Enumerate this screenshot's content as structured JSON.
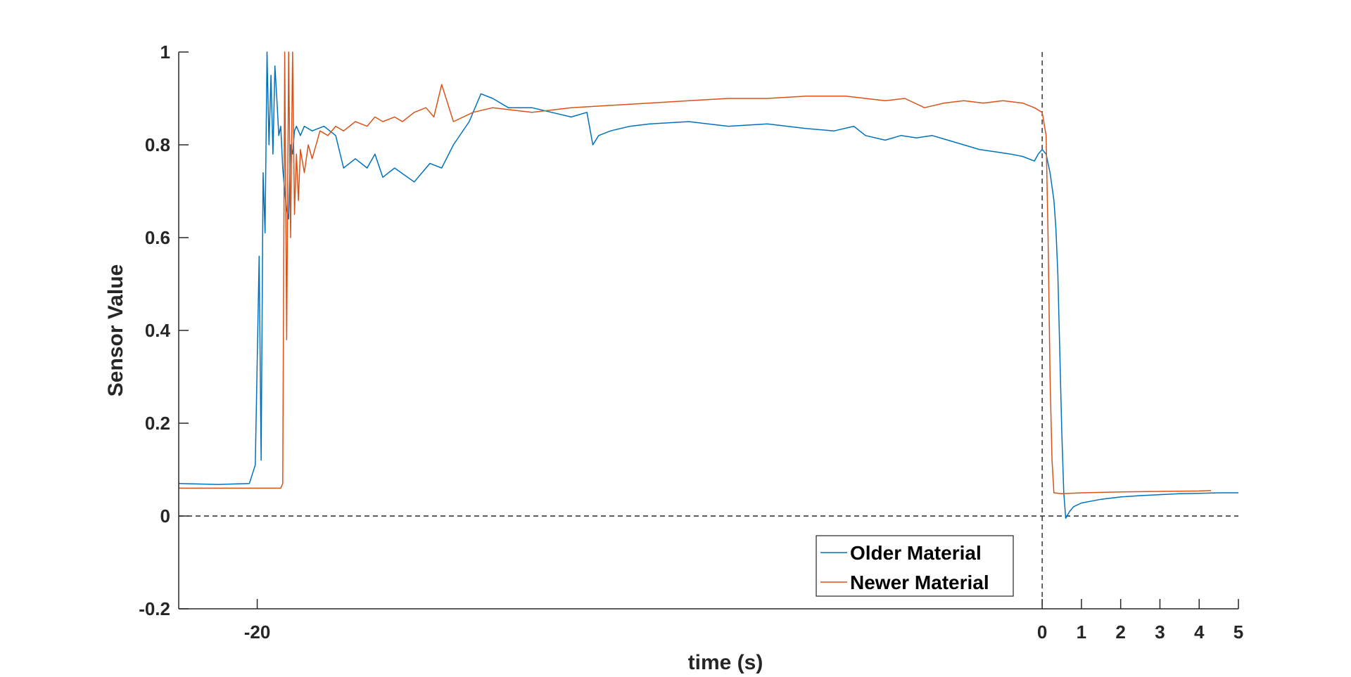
{
  "chart_data": {
    "type": "line",
    "title": "",
    "xlabel": "time (s)",
    "ylabel": "Sensor Value",
    "xlim": [
      -22,
      5
    ],
    "ylim": [
      -0.2,
      1
    ],
    "x_ticks": [
      -20,
      0,
      1,
      2,
      3,
      4,
      5
    ],
    "x_tick_labels": [
      "-20",
      "0",
      "1",
      "2",
      "3",
      "4",
      "5"
    ],
    "y_ticks": [
      -0.2,
      0,
      0.2,
      0.4,
      0.6,
      0.8,
      1
    ],
    "y_tick_labels": [
      "-0.2",
      "0",
      "0.2",
      "0.4",
      "0.6",
      "0.8",
      "1"
    ],
    "grid": false,
    "legend_position": "bottom-center",
    "reference_lines": [
      {
        "orientation": "horizontal",
        "value": 0,
        "style": "dashed",
        "color": "#262626"
      },
      {
        "orientation": "vertical",
        "value": 0,
        "style": "dashed",
        "color": "#262626"
      }
    ],
    "series": [
      {
        "name": "Older Material",
        "color": "#0072BD",
        "x": [
          -22,
          -21.0,
          -20.2,
          -20.05,
          -19.95,
          -19.9,
          -19.85,
          -19.8,
          -19.75,
          -19.7,
          -19.65,
          -19.6,
          -19.55,
          -19.5,
          -19.45,
          -19.4,
          -19.35,
          -19.3,
          -19.25,
          -19.2,
          -19.15,
          -19.1,
          -19.05,
          -19.0,
          -18.9,
          -18.8,
          -18.6,
          -18.3,
          -18.0,
          -17.8,
          -17.5,
          -17.2,
          -17.0,
          -16.8,
          -16.5,
          -16.0,
          -15.6,
          -15.3,
          -15.0,
          -14.6,
          -14.3,
          -14.0,
          -13.6,
          -13.0,
          -12.5,
          -12.0,
          -11.6,
          -11.45,
          -11.3,
          -11.0,
          -10.5,
          -10.0,
          -9.0,
          -8.0,
          -7.0,
          -6.0,
          -5.3,
          -4.8,
          -4.5,
          -4.0,
          -3.6,
          -3.2,
          -2.8,
          -2.4,
          -2.0,
          -1.6,
          -1.2,
          -0.8,
          -0.5,
          -0.2,
          -0.1,
          0.0,
          0.1,
          0.2,
          0.3,
          0.35,
          0.4,
          0.45,
          0.5,
          0.55,
          0.6,
          0.7,
          0.8,
          1.0,
          1.5,
          2.0,
          2.5,
          3.0,
          3.5,
          4.0,
          4.5,
          5.0
        ],
        "y": [
          0.07,
          0.068,
          0.07,
          0.11,
          0.56,
          0.12,
          0.74,
          0.61,
          1.0,
          0.8,
          0.95,
          0.78,
          0.97,
          0.9,
          0.82,
          0.84,
          0.75,
          0.7,
          0.66,
          0.64,
          0.8,
          0.78,
          0.83,
          0.84,
          0.82,
          0.84,
          0.83,
          0.84,
          0.82,
          0.75,
          0.77,
          0.75,
          0.78,
          0.73,
          0.75,
          0.72,
          0.76,
          0.75,
          0.8,
          0.85,
          0.91,
          0.9,
          0.88,
          0.88,
          0.87,
          0.86,
          0.87,
          0.8,
          0.82,
          0.83,
          0.84,
          0.845,
          0.85,
          0.84,
          0.845,
          0.835,
          0.83,
          0.84,
          0.82,
          0.81,
          0.82,
          0.815,
          0.82,
          0.81,
          0.8,
          0.79,
          0.785,
          0.78,
          0.775,
          0.765,
          0.78,
          0.79,
          0.78,
          0.74,
          0.68,
          0.62,
          0.52,
          0.35,
          0.18,
          0.05,
          -0.005,
          0.01,
          0.02,
          0.028,
          0.036,
          0.041,
          0.044,
          0.046,
          0.048,
          0.049,
          0.05,
          0.05
        ]
      },
      {
        "name": "Newer Material",
        "color": "#D95319",
        "x": [
          -22,
          -20.0,
          -19.4,
          -19.35,
          -19.3,
          -19.25,
          -19.2,
          -19.15,
          -19.1,
          -19.05,
          -19.0,
          -18.95,
          -18.9,
          -18.8,
          -18.7,
          -18.6,
          -18.4,
          -18.2,
          -18.0,
          -17.8,
          -17.5,
          -17.2,
          -17.0,
          -16.8,
          -16.5,
          -16.3,
          -16.0,
          -15.7,
          -15.5,
          -15.3,
          -15.0,
          -14.5,
          -14.0,
          -13.5,
          -13.0,
          -12.0,
          -11.0,
          -10.0,
          -9.0,
          -8.0,
          -7.0,
          -6.0,
          -5.0,
          -4.5,
          -4.0,
          -3.5,
          -3.0,
          -2.5,
          -2.0,
          -1.5,
          -1.0,
          -0.5,
          -0.2,
          0.0,
          0.1,
          0.15,
          0.2,
          0.25,
          0.3,
          0.5,
          1.0,
          2.0,
          3.0,
          4.0,
          4.3
        ],
        "y": [
          0.06,
          0.06,
          0.06,
          0.07,
          1.0,
          0.38,
          1.0,
          0.6,
          1.0,
          0.65,
          0.78,
          0.68,
          0.79,
          0.74,
          0.8,
          0.77,
          0.83,
          0.82,
          0.84,
          0.83,
          0.85,
          0.84,
          0.86,
          0.85,
          0.86,
          0.85,
          0.87,
          0.88,
          0.86,
          0.93,
          0.85,
          0.87,
          0.88,
          0.875,
          0.87,
          0.88,
          0.885,
          0.89,
          0.895,
          0.9,
          0.9,
          0.905,
          0.905,
          0.9,
          0.895,
          0.9,
          0.88,
          0.89,
          0.895,
          0.89,
          0.895,
          0.89,
          0.88,
          0.87,
          0.82,
          0.6,
          0.3,
          0.12,
          0.05,
          0.048,
          0.05,
          0.052,
          0.053,
          0.054,
          0.055
        ]
      }
    ]
  }
}
